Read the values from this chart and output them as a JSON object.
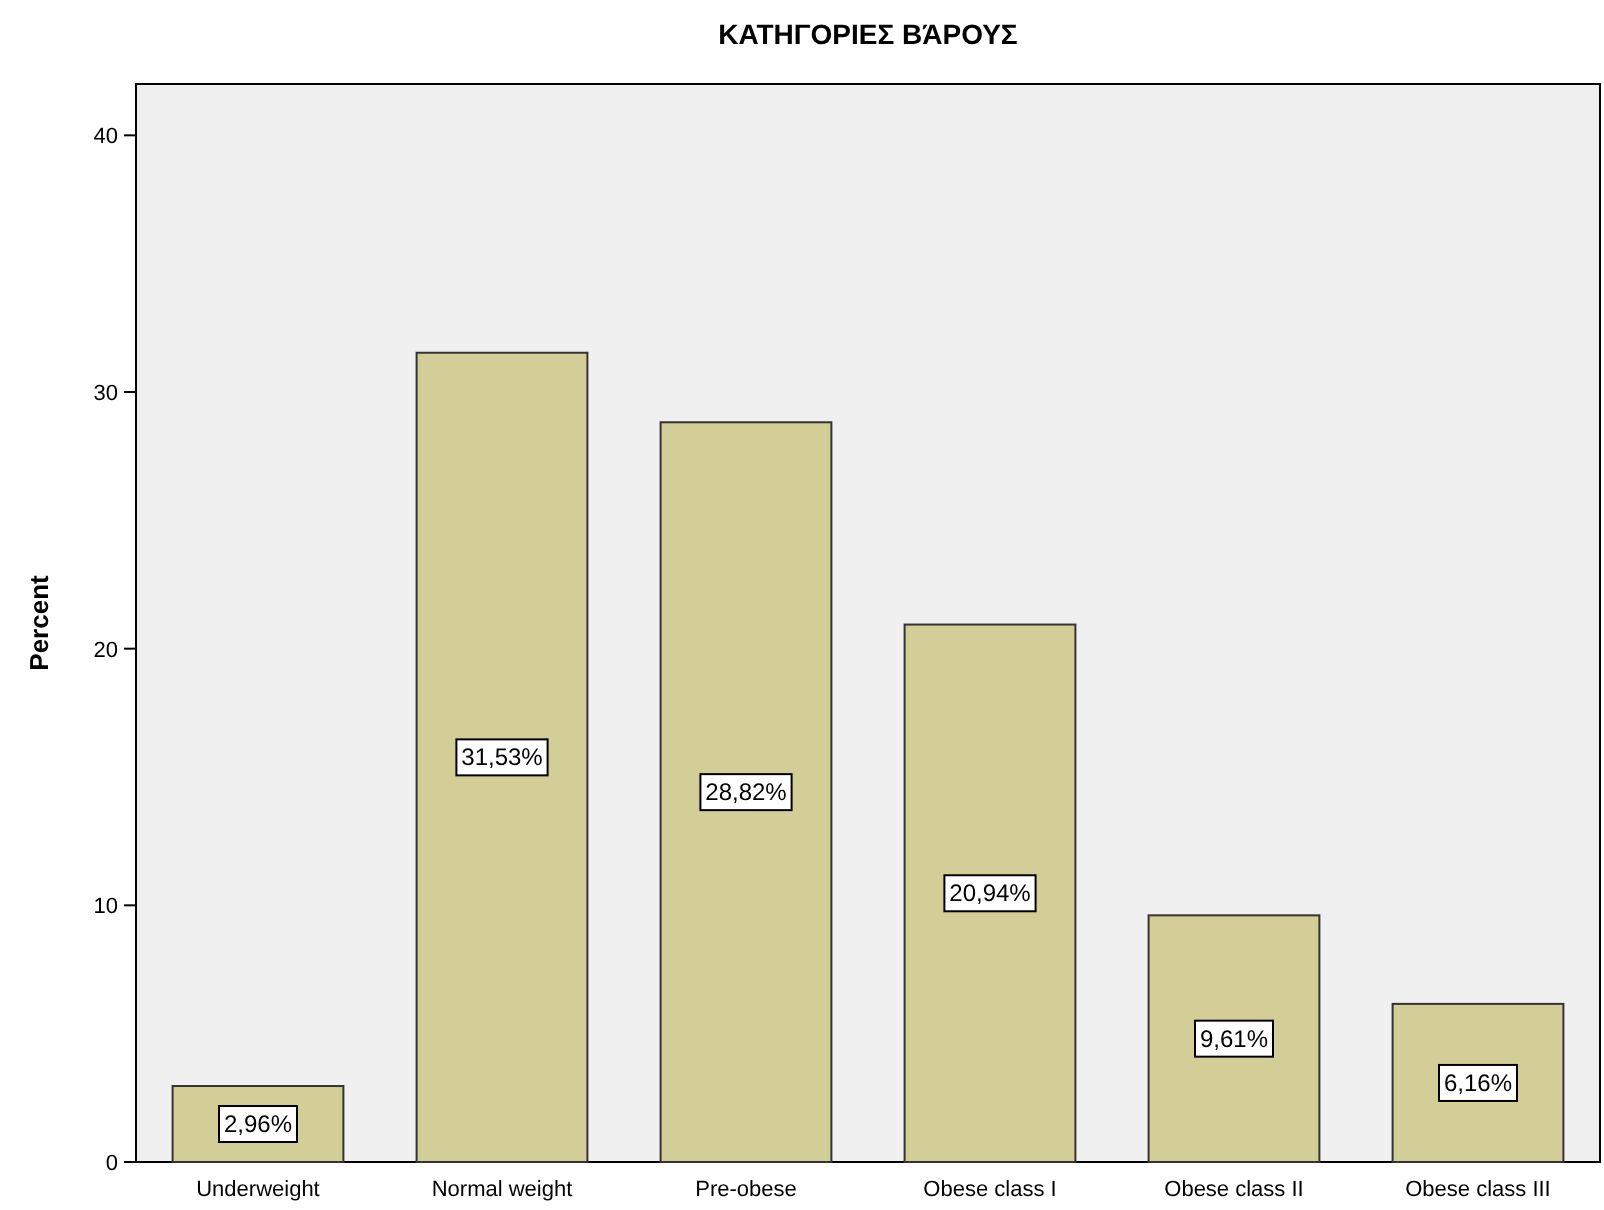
{
  "chart_data": {
    "type": "bar",
    "title": "ΚΑΤΗΓΟΡΙΕΣ ΒΆΡΟΥΣ",
    "ylabel": "Percent",
    "categories": [
      "Underweight",
      "Normal weight",
      "Pre-obese",
      "Obese class I",
      "Obese class II",
      "Obese class III"
    ],
    "values": [
      2.96,
      31.53,
      28.82,
      20.94,
      9.61,
      6.16
    ],
    "value_labels": [
      "2,96%",
      "31,53%",
      "28,82%",
      "20,94%",
      "9,61%",
      "6,16%"
    ],
    "color": "#d3ce97",
    "ylim": [
      0,
      42
    ],
    "yticks": [
      0,
      10,
      20,
      30,
      40
    ],
    "grid": false
  }
}
